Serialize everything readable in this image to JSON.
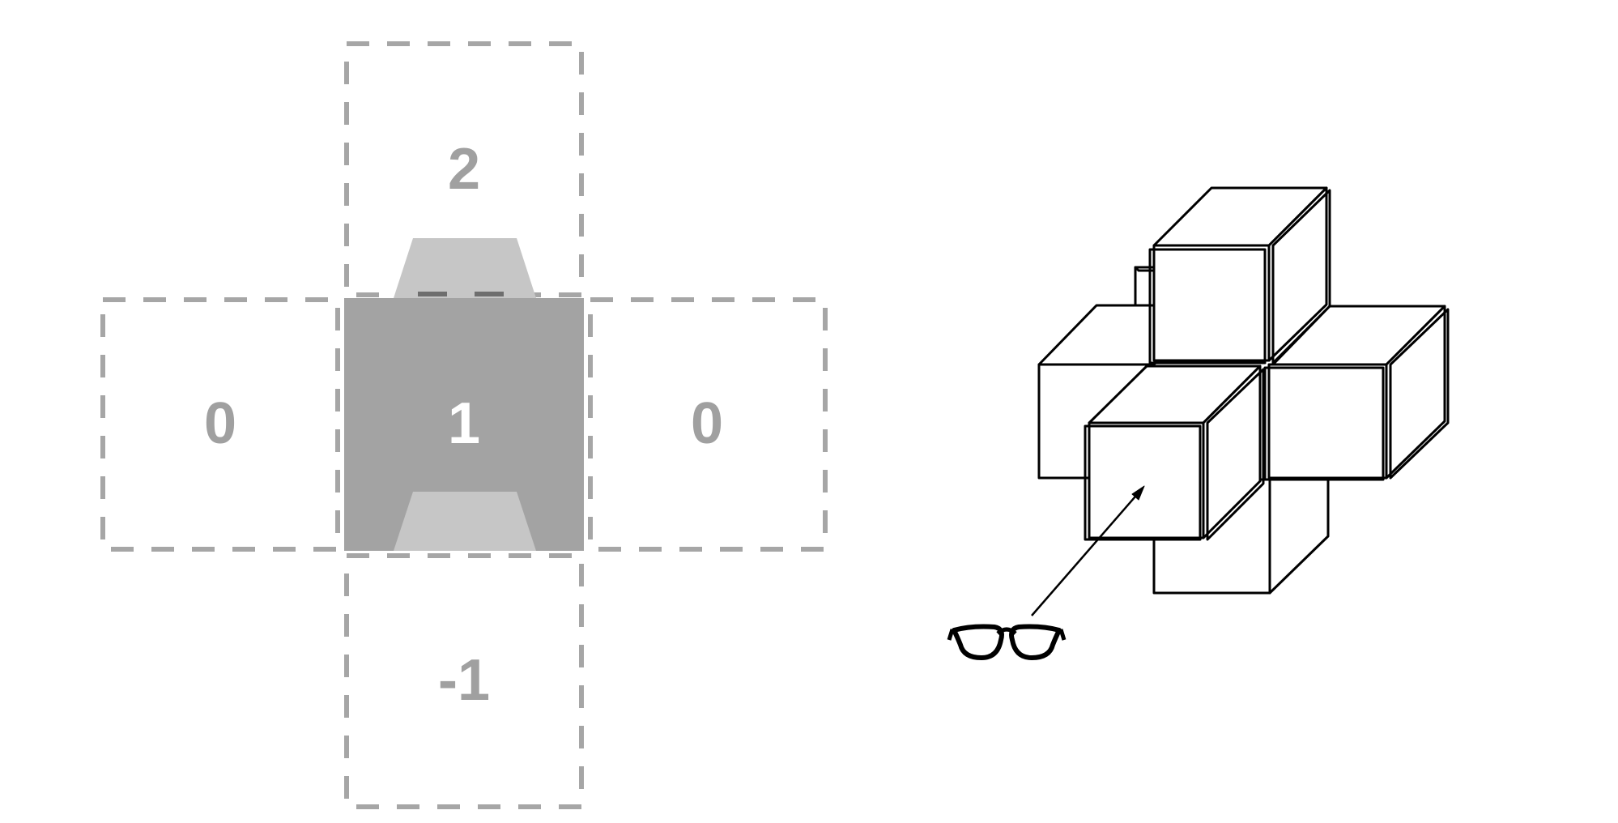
{
  "net": {
    "center_label": "1",
    "top_label": "2",
    "left_label": "0",
    "right_label": "0",
    "bottom_label": "-1"
  },
  "colors": {
    "dashed_outline": "#a6a6a6",
    "center_fill": "#a3a3a3",
    "trapezoid_fill": "#c6c6c6",
    "center_label": "#ffffff",
    "side_label": "#a0a0a0",
    "cube_stroke": "#000000"
  },
  "viewer": {
    "icon": "glasses-icon",
    "arrow_icon": "view-direction-arrow-icon"
  }
}
